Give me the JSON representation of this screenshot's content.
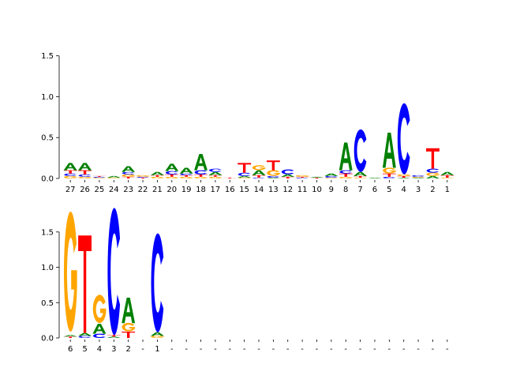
{
  "colors": {
    "A": "#008000",
    "C": "#0000ff",
    "G": "#ffa500",
    "T": "#ff0000"
  },
  "chart_data": [
    {
      "type": "sequence-logo",
      "title": "",
      "xlabel": "",
      "ylabel": "",
      "ylim": [
        0,
        1.7
      ],
      "yticks": [
        "0.0",
        "0.5",
        "1.0",
        "1.5"
      ],
      "yticks_values": [
        0.0,
        0.5,
        1.0,
        1.5
      ],
      "positions": [
        "27",
        "26",
        "25",
        "24",
        "23",
        "22",
        "21",
        "20",
        "19",
        "18",
        "17",
        "16",
        "15",
        "14",
        "13",
        "12",
        "11",
        "10",
        "9",
        "8",
        "7",
        "6",
        "5",
        "4",
        "3",
        "2",
        "1"
      ],
      "heights": [
        {
          "G": 0.03,
          "C": 0.03,
          "T": 0.04,
          "A": 0.09
        },
        {
          "G": 0.02,
          "C": 0.03,
          "T": 0.05,
          "A": 0.09
        },
        {
          "G": 0.01,
          "C": 0.01,
          "T": 0.01
        },
        {
          "G": 0.01,
          "A": 0.02
        },
        {
          "G": 0.03,
          "T": 0.02,
          "C": 0.03,
          "A": 0.07
        },
        {
          "T": 0.01,
          "C": 0.01,
          "G": 0.02
        },
        {
          "G": 0.02,
          "T": 0.02,
          "A": 0.04
        },
        {
          "G": 0.02,
          "T": 0.03,
          "C": 0.04,
          "A": 0.09
        },
        {
          "G": 0.02,
          "T": 0.02,
          "C": 0.02,
          "A": 0.07
        },
        {
          "G": 0.02,
          "C": 0.05,
          "T": 0.03,
          "A": 0.2
        },
        {
          "G": 0.02,
          "T": 0.02,
          "A": 0.04,
          "C": 0.04
        },
        {
          "T": 0.01
        },
        {
          "G": 0.01,
          "A": 0.02,
          "C": 0.04,
          "T": 0.12
        },
        {
          "C": 0.01,
          "T": 0.03,
          "A": 0.06,
          "G": 0.06
        },
        {
          "A": 0.01,
          "C": 0.02,
          "G": 0.07,
          "T": 0.12
        },
        {
          "T": 0.02,
          "A": 0.03,
          "C": 0.06
        },
        {
          "C": 0.01,
          "T": 0.01,
          "G": 0.02
        },
        {
          "T": 0.01,
          "A": 0.01
        },
        {
          "G": 0.01,
          "C": 0.02,
          "A": 0.03
        },
        {
          "G": 0.02,
          "T": 0.04,
          "C": 0.04,
          "A": 0.34
        },
        {
          "G": 0.01,
          "T": 0.02,
          "A": 0.05,
          "C": 0.52
        },
        {
          "A": 0.01
        },
        {
          "C": 0.02,
          "T": 0.04,
          "G": 0.07,
          "A": 0.43
        },
        {
          "A": 0.01,
          "T": 0.02,
          "G": 0.02,
          "C": 0.87
        },
        {
          "A": 0.01,
          "G": 0.01,
          "C": 0.02
        },
        {
          "A": 0.03,
          "G": 0.04,
          "C": 0.05,
          "T": 0.25
        },
        {
          "G": 0.01,
          "A": 0.04,
          "T": 0.03
        }
      ]
    },
    {
      "type": "sequence-logo",
      "title": "",
      "xlabel": "",
      "ylabel": "",
      "ylim": [
        0,
        1.9
      ],
      "yticks": [
        "0.0",
        "0.5",
        "1.0",
        "1.5"
      ],
      "yticks_values": [
        0.0,
        0.5,
        1.0,
        1.5
      ],
      "positions": [
        "6",
        "5",
        "4",
        "3",
        "2",
        "-",
        "1",
        "-",
        "-",
        "-",
        "-",
        "-",
        "-",
        "-",
        "-",
        "-",
        "-",
        "-",
        "-",
        "-",
        "-",
        "-",
        "-",
        "-",
        "-",
        "-",
        "-"
      ],
      "heights": [
        {
          "T": 0.02,
          "A": 0.02,
          "G": 1.7
        },
        {
          "C": 0.03,
          "A": 0.04,
          "T": 1.38
        },
        {
          "C": 0.06,
          "A": 0.14,
          "G": 0.4
        },
        {
          "A": 0.02,
          "T": 0.02,
          "C": 1.8
        },
        {
          "T": 0.09,
          "G": 0.12,
          "A": 0.36
        },
        {},
        {
          "G": 0.03,
          "A": 0.05,
          "C": 1.4
        },
        {},
        {},
        {},
        {},
        {},
        {},
        {},
        {},
        {},
        {},
        {},
        {},
        {},
        {},
        {},
        {},
        {},
        {},
        {},
        {}
      ]
    }
  ]
}
